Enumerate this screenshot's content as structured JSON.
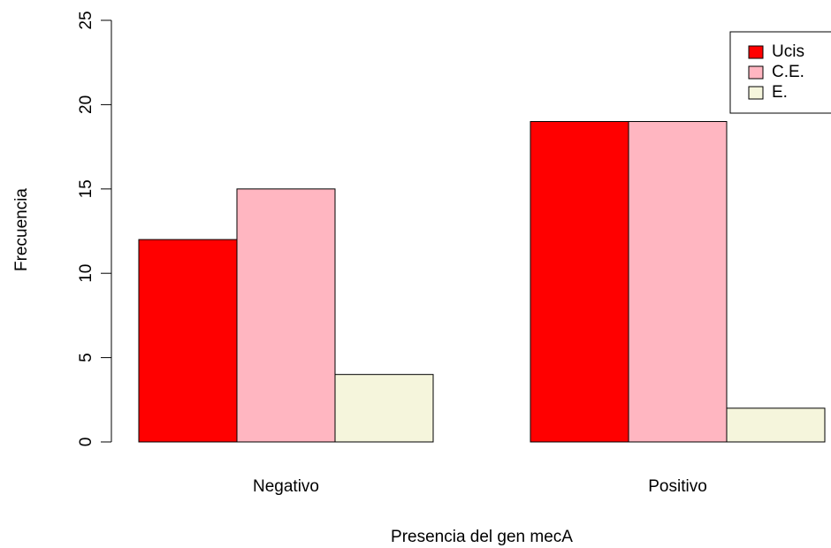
{
  "chart_data": {
    "type": "bar",
    "title": "",
    "xlabel": "Presencia del gen mecA",
    "ylabel": "Frecuencia",
    "categories": [
      "Negativo",
      "Positivo"
    ],
    "series": [
      {
        "name": "Ucis",
        "values": [
          12,
          19
        ],
        "color": "#ff0000"
      },
      {
        "name": "C.E.",
        "values": [
          15,
          19
        ],
        "color": "#ffb6c1"
      },
      {
        "name": "E.",
        "values": [
          4,
          2
        ],
        "color": "#f5f5dc"
      }
    ],
    "ylim": [
      0,
      25
    ],
    "yticks": [
      0,
      5,
      10,
      15,
      20,
      25
    ],
    "grouped": true,
    "grid": false,
    "legend_position": "top-right"
  }
}
